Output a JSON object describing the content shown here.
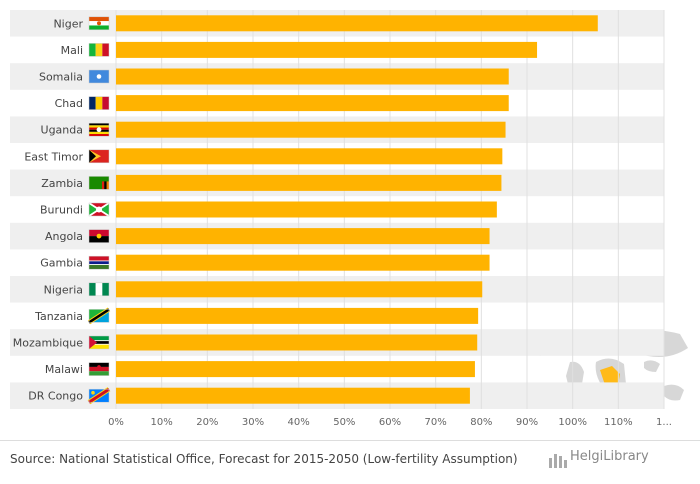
{
  "chart_data": {
    "type": "bar",
    "orientation": "horizontal",
    "categories": [
      "Niger",
      "Mali",
      "Somalia",
      "Chad",
      "Uganda",
      "East Timor",
      "Zambia",
      "Burundi",
      "Angola",
      "Gambia",
      "Nigeria",
      "Tanzania",
      "Mozambique",
      "Malawi",
      "DR Congo"
    ],
    "values": [
      105.5,
      92.2,
      86.0,
      86.0,
      85.3,
      84.6,
      84.4,
      83.4,
      81.8,
      81.8,
      80.2,
      79.3,
      79.1,
      78.6,
      77.5
    ],
    "xlim": [
      0,
      120
    ],
    "xticks": [
      "0%",
      "10%",
      "20%",
      "30%",
      "40%",
      "50%",
      "60%",
      "70%",
      "80%",
      "90%",
      "100%",
      "110%",
      "1..."
    ],
    "bar_color": "#ffb300",
    "grid": true
  },
  "flags": {
    "Niger": "niger-flag-icon",
    "Mali": "mali-flag-icon",
    "Somalia": "somalia-flag-icon",
    "Chad": "chad-flag-icon",
    "Uganda": "uganda-flag-icon",
    "East Timor": "east-timor-flag-icon",
    "Zambia": "zambia-flag-icon",
    "Burundi": "burundi-flag-icon",
    "Angola": "angola-flag-icon",
    "Gambia": "gambia-flag-icon",
    "Nigeria": "nigeria-flag-icon",
    "Tanzania": "tanzania-flag-icon",
    "Mozambique": "mozambique-flag-icon",
    "Malawi": "malawi-flag-icon",
    "DR Congo": "dr-congo-flag-icon"
  },
  "footer": {
    "source": "Source: National Statistical Office, Forecast for 2015-2050 (Low-fertility Assumption)",
    "brand": "HelgiLibrary"
  }
}
